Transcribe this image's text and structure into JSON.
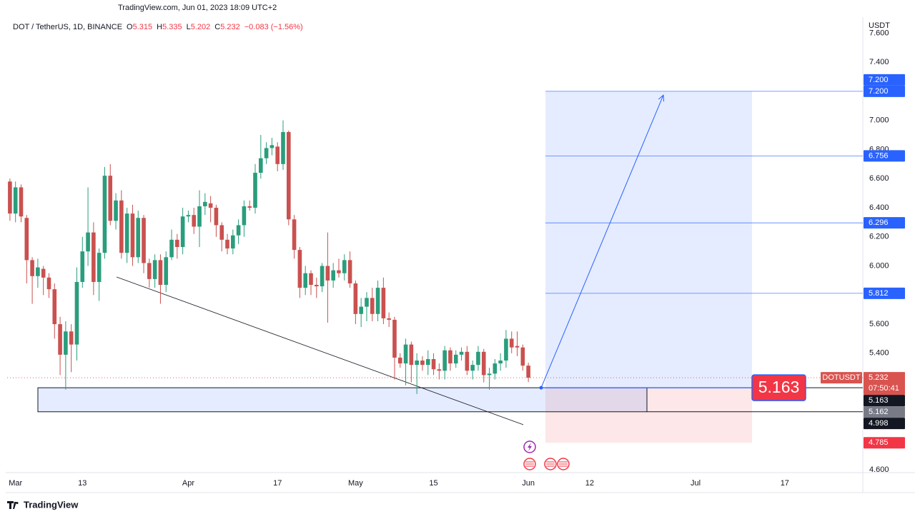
{
  "header": {
    "source": "TradingView.com, Jun 01, 2023 18:09 UTC+2",
    "symbol": "DOT / TetherUS, 1D, BINANCE",
    "ohlc": [
      {
        "key": "O",
        "value": "5.315"
      },
      {
        "key": "H",
        "value": "5.335"
      },
      {
        "key": "L",
        "value": "5.202"
      },
      {
        "key": "C",
        "value": "5.232"
      }
    ],
    "change": "−0.083 (−1.56%)"
  },
  "footer": {
    "brand": "TradingView"
  },
  "chart_data": {
    "type": "candlestick",
    "axis_unit": "USDT",
    "up_color": "#2a9d7c",
    "down_color": "#c9514f",
    "open": [
      6.58,
      6.36,
      6.54,
      6.33,
      6.04,
      5.93,
      5.98,
      5.92,
      5.84,
      5.6,
      5.39,
      5.55,
      5.46,
      5.89,
      6.1,
      6.23,
      5.89,
      6.09,
      6.62,
      6.31,
      6.45,
      6.09,
      6.36,
      6.06,
      6.33,
      6.02,
      5.91,
      6.04,
      5.87,
      6.06,
      6.18,
      6.13,
      6.34,
      6.35,
      6.27,
      6.41,
      6.43,
      6.4,
      6.28,
      6.18,
      6.12,
      6.21,
      6.28,
      6.41,
      6.4,
      6.64,
      6.74,
      6.81,
      6.82,
      6.7,
      6.92,
      6.32,
      6.11,
      5.85,
      5.95,
      5.87,
      5.86,
      6.0,
      5.9,
      5.97,
      5.95,
      6.04,
      5.88,
      5.67,
      5.72,
      5.78,
      5.67,
      5.85,
      5.64,
      5.63,
      5.37,
      5.33,
      5.46,
      5.32,
      5.35,
      5.32,
      5.36,
      5.29,
      5.28,
      5.42,
      5.33,
      5.39,
      5.41,
      5.28,
      5.32,
      5.41,
      5.25,
      5.26,
      5.33,
      5.35,
      5.5,
      5.45,
      5.44,
      5.315
    ],
    "high": [
      6.6,
      6.58,
      6.56,
      6.35,
      6.06,
      6.05,
      6.0,
      5.95,
      5.88,
      5.65,
      5.62,
      5.6,
      5.99,
      6.2,
      6.54,
      6.3,
      6.12,
      6.68,
      6.7,
      6.5,
      6.52,
      6.4,
      6.42,
      6.38,
      6.35,
      6.05,
      6.08,
      6.08,
      6.1,
      6.25,
      6.22,
      6.4,
      6.38,
      6.4,
      6.52,
      6.5,
      6.48,
      6.42,
      6.3,
      6.22,
      6.25,
      6.32,
      6.45,
      6.45,
      6.7,
      6.9,
      6.85,
      6.88,
      6.85,
      7.0,
      6.93,
      6.35,
      6.13,
      6.0,
      5.97,
      5.92,
      6.02,
      6.23,
      6.02,
      6.05,
      6.08,
      6.1,
      5.9,
      5.78,
      5.82,
      5.85,
      5.9,
      5.92,
      5.68,
      5.65,
      5.4,
      5.5,
      5.48,
      5.4,
      5.38,
      5.42,
      5.4,
      5.33,
      5.45,
      5.44,
      5.42,
      5.44,
      5.45,
      5.35,
      5.45,
      5.43,
      5.3,
      5.36,
      5.4,
      5.56,
      5.55,
      5.55,
      5.46,
      5.335
    ],
    "low": [
      6.31,
      6.3,
      6.3,
      5.88,
      5.74,
      5.85,
      5.8,
      5.78,
      5.5,
      5.25,
      5.15,
      5.27,
      5.35,
      5.85,
      6.0,
      5.8,
      5.76,
      6.05,
      6.28,
      6.25,
      6.05,
      6.02,
      6.0,
      6.02,
      5.95,
      5.85,
      5.85,
      5.74,
      5.82,
      6.04,
      6.05,
      6.08,
      6.3,
      6.22,
      6.13,
      6.35,
      6.3,
      6.2,
      6.1,
      6.08,
      6.08,
      6.15,
      6.2,
      6.38,
      6.36,
      6.6,
      6.7,
      6.76,
      6.65,
      6.66,
      6.28,
      6.05,
      5.78,
      5.8,
      5.8,
      5.78,
      5.82,
      5.61,
      5.85,
      5.92,
      5.9,
      5.85,
      5.6,
      5.58,
      5.62,
      5.62,
      5.62,
      5.6,
      5.58,
      5.22,
      5.3,
      5.18,
      5.2,
      5.12,
      5.28,
      5.25,
      5.25,
      5.22,
      5.22,
      5.28,
      5.3,
      5.35,
      5.25,
      5.22,
      5.28,
      5.2,
      5.15,
      5.22,
      5.28,
      5.3,
      5.4,
      5.38,
      5.28,
      5.202
    ],
    "close": [
      6.36,
      6.54,
      6.34,
      6.04,
      5.93,
      5.99,
      5.92,
      5.84,
      5.6,
      5.39,
      5.55,
      5.46,
      5.89,
      6.1,
      6.23,
      5.89,
      6.09,
      6.62,
      6.31,
      6.45,
      6.09,
      6.36,
      6.06,
      6.33,
      6.02,
      5.91,
      6.04,
      5.87,
      6.06,
      6.18,
      6.13,
      6.34,
      6.35,
      6.27,
      6.41,
      6.44,
      6.4,
      6.28,
      6.18,
      6.12,
      6.21,
      6.28,
      6.41,
      6.4,
      6.64,
      6.74,
      6.81,
      6.83,
      6.7,
      6.92,
      6.32,
      6.11,
      5.85,
      5.95,
      5.87,
      5.86,
      6.0,
      5.9,
      5.97,
      5.95,
      6.04,
      5.88,
      5.67,
      5.72,
      5.78,
      5.67,
      5.85,
      5.64,
      5.63,
      5.37,
      5.33,
      5.46,
      5.32,
      5.35,
      5.32,
      5.36,
      5.29,
      5.28,
      5.42,
      5.33,
      5.39,
      5.41,
      5.28,
      5.32,
      5.41,
      5.25,
      5.26,
      5.33,
      5.35,
      5.5,
      5.44,
      5.44,
      5.315,
      5.232
    ],
    "xlim": [
      -0.5,
      153
    ],
    "xticks": [
      {
        "value": 1,
        "label": "Mar"
      },
      13,
      {
        "value": 32,
        "label": "Apr"
      },
      {
        "value": 48,
        "label": "17"
      },
      {
        "value": 62,
        "label": "May"
      },
      {
        "value": 76,
        "label": "15"
      },
      {
        "value": 93,
        "label": "Jun"
      },
      {
        "value": 104,
        "label": "12"
      },
      {
        "value": 123,
        "label": "Jul"
      },
      {
        "value": 139,
        "label": "17"
      }
    ],
    "ylim": [
      4.58,
      7.69
    ],
    "yticks": [
      {
        "value": 4.6,
        "label": "4.600"
      },
      {
        "value": 4.8,
        "label": "4.800"
      },
      {
        "value": 5.0,
        "label": "5.000"
      },
      {
        "value": 5.2,
        "label": "5.200"
      },
      {
        "value": 5.4,
        "label": "5.400"
      },
      {
        "value": 5.6,
        "label": "5.600"
      },
      {
        "value": 5.8,
        "label": "5.800"
      },
      {
        "value": 6.0,
        "label": "6.000"
      },
      {
        "value": 6.2,
        "label": "6.200"
      },
      {
        "value": 6.4,
        "label": "6.400"
      },
      {
        "value": 6.6,
        "label": "6.600"
      },
      {
        "value": 6.8,
        "label": "6.800"
      },
      {
        "value": 7.0,
        "label": "7.000"
      },
      {
        "value": 7.2,
        "label": "7.200"
      },
      {
        "value": 7.4,
        "label": "7.400"
      },
      {
        "value": 7.6,
        "label": "7.600"
      }
    ],
    "price_labels": [
      {
        "value": 7.2,
        "label": "7.200",
        "color": "#2962ff"
      },
      {
        "value": 7.2,
        "label": "7.200",
        "color": "#2962ff"
      },
      {
        "value": 6.756,
        "label": "6.756",
        "color": "#2962ff"
      },
      {
        "value": 6.296,
        "label": "6.296",
        "color": "#2962ff"
      },
      {
        "value": 5.812,
        "label": "5.812",
        "color": "#2962ff"
      },
      {
        "value": 5.232,
        "label": "5.232",
        "color": "#d9534f",
        "symbol": "DOTUSDT",
        "countdown": "07:50:41"
      },
      {
        "value": 5.163,
        "label": "5.163",
        "color": "#131722"
      },
      {
        "value": 5.162,
        "label": "5.162",
        "color": "#787b86"
      },
      {
        "value": 4.998,
        "label": "4.998",
        "color": "#131722"
      },
      {
        "value": 4.785,
        "label": "4.785",
        "color": "#f23645"
      }
    ],
    "drawings": {
      "targets": [
        7.2,
        6.756,
        6.296,
        5.812
      ],
      "position": {
        "entry": 5.163,
        "target": 7.2,
        "stop": 4.785,
        "entry_label": "5.163"
      },
      "zone": {
        "top": 5.163,
        "bottom": 4.998
      },
      "trendline": [
        5.924,
        4.909
      ],
      "arrow_end": 7.174,
      "last_price": 5.232
    }
  }
}
